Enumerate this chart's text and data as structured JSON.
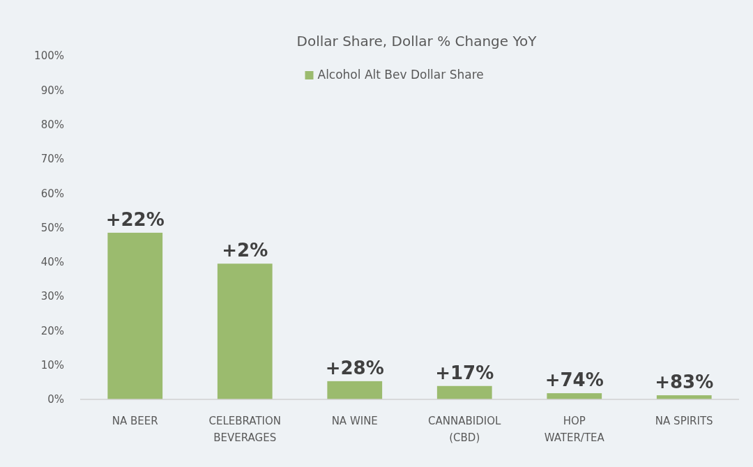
{
  "chart_data": {
    "type": "bar",
    "title": "Dollar Share, Dollar % Change YoY",
    "categories": [
      "NA BEER",
      "CELEBRATION\nBEVERAGES",
      "NA WINE",
      "CANNABIDIOL\n(CBD)",
      "HOP\nWATER/TEA",
      "NA SPIRITS"
    ],
    "series": [
      {
        "name": "Alcohol Alt Bev Dollar Share",
        "color": "#9bbb6e",
        "values": [
          48.5,
          39.5,
          5.3,
          3.9,
          1.8,
          1.2
        ]
      }
    ],
    "annotations": [
      {
        "text": "+22%",
        "x": "NA BEER",
        "y": 48.5
      },
      {
        "text": "+2%",
        "x": "CELEBRATION\nBEVERAGES",
        "y": 39.5
      },
      {
        "text": "+28%",
        "x": "NA WINE",
        "y": 5.3
      },
      {
        "text": "+17%",
        "x": "CANNABIDIOL\n(CBD)",
        "y": 3.9
      },
      {
        "text": "+74%",
        "x": "HOP\nWATER/TEA",
        "y": 1.8
      },
      {
        "text": "+83%",
        "x": "NA SPIRITS",
        "y": 1.2
      }
    ],
    "ylim": [
      0,
      100
    ],
    "yticks": [
      {
        "value": 0,
        "label": "0%"
      },
      {
        "value": 10,
        "label": "10%"
      },
      {
        "value": 20,
        "label": "20%"
      },
      {
        "value": 30,
        "label": "30%"
      },
      {
        "value": 40,
        "label": "40%"
      },
      {
        "value": 50,
        "label": "50%"
      },
      {
        "value": 60,
        "label": "60%"
      },
      {
        "value": 70,
        "label": "70%"
      },
      {
        "value": 80,
        "label": "80%"
      },
      {
        "value": 90,
        "label": "90%"
      },
      {
        "value": 100,
        "label": "100%"
      }
    ],
    "grid": false,
    "legend": "top"
  }
}
